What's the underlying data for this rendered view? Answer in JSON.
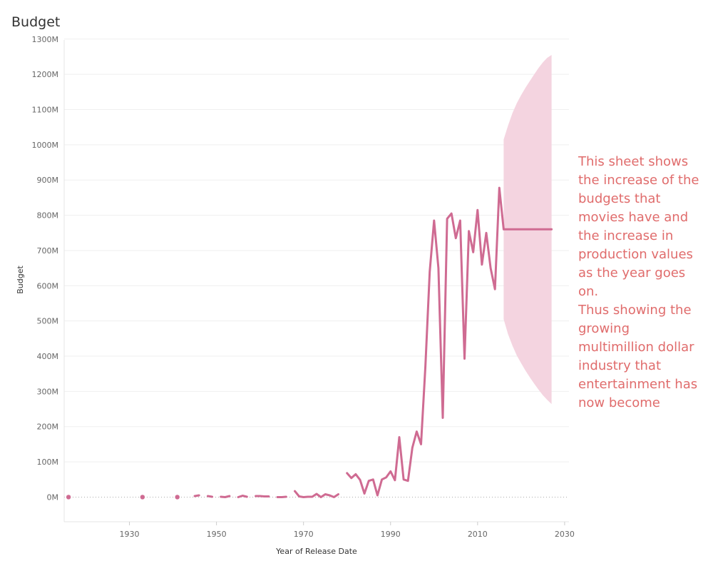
{
  "sheet": {
    "title": "Budget"
  },
  "annotation": {
    "line1": "This sheet shows the increase of the budgets that movies have and the increase in production values as the year goes on.",
    "line2": "Thus showing the growing multimillion dollar industry that entertainment has now become"
  },
  "colors": {
    "line": "#cf6b92",
    "forecast_band": "#f3d2de",
    "annotation_text": "#e06c6c"
  },
  "chart_data": {
    "type": "line",
    "title": "Budget",
    "xlabel": "Year of Release Date",
    "ylabel": "Budget",
    "xlim": [
      1915,
      2031
    ],
    "ylim": [
      -70,
      1330
    ],
    "x_ticks": [
      1930,
      1950,
      1970,
      1990,
      2010,
      2030
    ],
    "x_tick_labels": [
      "1930",
      "1950",
      "1970",
      "1990",
      "2010",
      "2030"
    ],
    "y_ticks": [
      0,
      100,
      200,
      300,
      400,
      500,
      600,
      700,
      800,
      900,
      1000,
      1100,
      1200,
      1300
    ],
    "y_tick_labels": [
      "0M",
      "100M",
      "200M",
      "300M",
      "400M",
      "500M",
      "600M",
      "700M",
      "800M",
      "900M",
      "1000M",
      "1100M",
      "1200M",
      "1300M"
    ],
    "grid": true,
    "series": [
      {
        "values_unit": "millions",
        "segments": [
          [
            [
              1916,
              0
            ]
          ],
          [
            [
              1933,
              0
            ]
          ],
          [
            [
              1941,
              0
            ]
          ],
          [
            [
              1945,
              3
            ],
            [
              1946,
              5
            ]
          ],
          [
            [
              1948,
              3
            ],
            [
              1949,
              1
            ]
          ],
          [
            [
              1951,
              1
            ],
            [
              1952,
              0
            ],
            [
              1953,
              3
            ]
          ],
          [
            [
              1955,
              0
            ],
            [
              1956,
              4
            ],
            [
              1957,
              1
            ]
          ],
          [
            [
              1959,
              3
            ],
            [
              1960,
              3
            ],
            [
              1961,
              2
            ],
            [
              1962,
              2
            ]
          ],
          [
            [
              1964,
              0
            ],
            [
              1965,
              0
            ],
            [
              1966,
              1
            ]
          ],
          [
            [
              1968,
              17
            ],
            [
              1969,
              2
            ],
            [
              1970,
              0
            ],
            [
              1971,
              1
            ],
            [
              1972,
              1
            ],
            [
              1973,
              9
            ],
            [
              1974,
              0
            ],
            [
              1975,
              8
            ],
            [
              1976,
              5
            ],
            [
              1977,
              0
            ],
            [
              1978,
              8
            ]
          ],
          [
            [
              1980,
              68
            ],
            [
              1981,
              54
            ],
            [
              1982,
              65
            ],
            [
              1983,
              49
            ],
            [
              1984,
              10
            ],
            [
              1985,
              46
            ],
            [
              1986,
              50
            ],
            [
              1987,
              5
            ],
            [
              1988,
              50
            ],
            [
              1989,
              56
            ],
            [
              1990,
              73
            ],
            [
              1991,
              48
            ],
            [
              1992,
              170
            ],
            [
              1993,
              50
            ],
            [
              1994,
              46
            ],
            [
              1995,
              140
            ],
            [
              1996,
              186
            ],
            [
              1997,
              150
            ],
            [
              1998,
              370
            ],
            [
              1999,
              640
            ],
            [
              2000,
              785
            ],
            [
              2001,
              650
            ],
            [
              2002,
              225
            ],
            [
              2003,
              790
            ],
            [
              2004,
              805
            ],
            [
              2005,
              735
            ],
            [
              2006,
              785
            ],
            [
              2007,
              393
            ],
            [
              2008,
              755
            ],
            [
              2009,
              695
            ],
            [
              2010,
              815
            ],
            [
              2011,
              660
            ],
            [
              2012,
              750
            ],
            [
              2013,
              650
            ],
            [
              2014,
              590
            ],
            [
              2015,
              878
            ],
            [
              2016,
              760
            ],
            [
              2017,
              760
            ],
            [
              2018,
              760
            ],
            [
              2019,
              760
            ],
            [
              2020,
              760
            ],
            [
              2021,
              760
            ],
            [
              2022,
              760
            ],
            [
              2023,
              760
            ],
            [
              2024,
              760
            ],
            [
              2025,
              760
            ],
            [
              2026,
              760
            ],
            [
              2027,
              760
            ]
          ]
        ]
      }
    ],
    "forecast_band": {
      "x": [
        2016,
        2017,
        2018,
        2019,
        2020,
        2021,
        2022,
        2023,
        2024,
        2025,
        2026,
        2027
      ],
      "upper": [
        1015,
        1055,
        1090,
        1118,
        1141,
        1162,
        1181,
        1200,
        1218,
        1234,
        1247,
        1255
      ],
      "lower": [
        505,
        462,
        430,
        402,
        380,
        359,
        340,
        322,
        305,
        289,
        276,
        264
      ]
    }
  }
}
